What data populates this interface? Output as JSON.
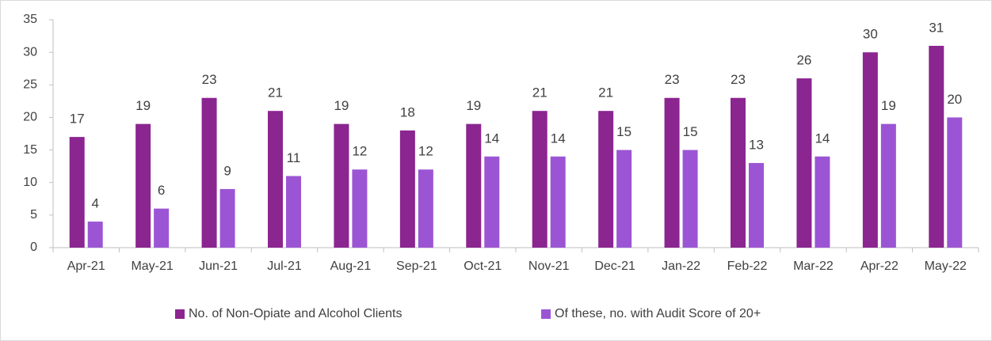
{
  "chart_data": {
    "type": "bar",
    "categories": [
      "Apr-21",
      "May-21",
      "Jun-21",
      "Jul-21",
      "Aug-21",
      "Sep-21",
      "Oct-21",
      "Nov-21",
      "Dec-21",
      "Jan-22",
      "Feb-22",
      "Mar-22",
      "Apr-22",
      "May-22"
    ],
    "series": [
      {
        "name": "No. of Non-Opiate and Alcohol Clients",
        "color": "#8b2590",
        "values": [
          17,
          19,
          23,
          21,
          19,
          18,
          19,
          21,
          21,
          23,
          23,
          26,
          30,
          31
        ]
      },
      {
        "name": "Of these, no. with Audit Score of 20+",
        "color": "#9b55d4",
        "values": [
          4,
          6,
          9,
          11,
          12,
          12,
          14,
          14,
          15,
          15,
          13,
          14,
          19,
          20
        ]
      }
    ],
    "ylim": [
      0,
      35
    ],
    "yticks": [
      0,
      5,
      10,
      15,
      20,
      25,
      30,
      35
    ],
    "grid": false,
    "legend": "bottom"
  }
}
